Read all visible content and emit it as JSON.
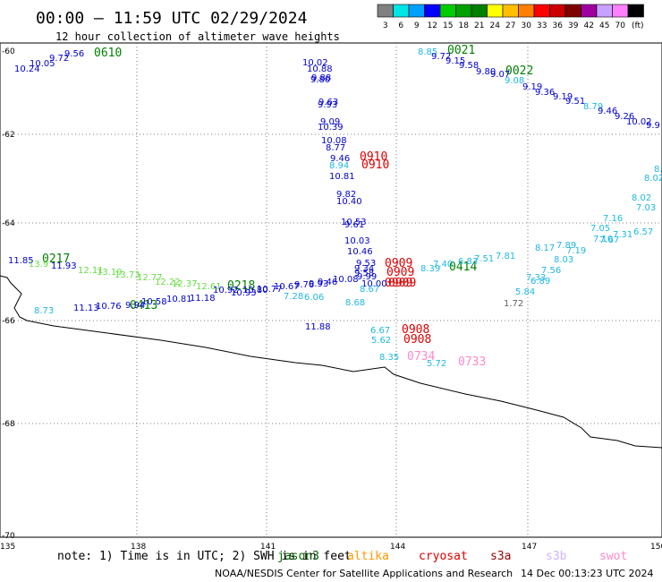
{
  "header": {
    "title": "00:00 — 11:59 UTC 02/29/2024",
    "subtitle": "12 hour collection of altimeter wave heights"
  },
  "legend": {
    "colors": [
      "#808080",
      "#00e5e5",
      "#00a0ff",
      "#0000ff",
      "#00cc00",
      "#00a000",
      "#008000",
      "#ffff00",
      "#ffbf00",
      "#ff8000",
      "#ff0000",
      "#cc0000",
      "#800000",
      "#a000a0",
      "#c8a0ff",
      "#ff80ff",
      "#000000"
    ],
    "labels": [
      "3",
      "6",
      "9",
      "12",
      "15",
      "18",
      "21",
      "24",
      "27",
      "30",
      "33",
      "36",
      "39",
      "42",
      "45",
      "70",
      "(ft)"
    ]
  },
  "axes": {
    "x_ticks": [
      "135",
      "138",
      "141",
      "144",
      "147",
      "150"
    ],
    "y_ticks": [
      "-60",
      "-62",
      "-64",
      "-66",
      "-68",
      "-70"
    ]
  },
  "map": {
    "colors": {
      "blue": "#0000cc",
      "cyan": "#20b8e0",
      "green": "#66dd44",
      "dkgreen": "#008000",
      "red": "#dd0000",
      "pink": "#ff88cc",
      "gray": "#606060"
    },
    "times": [
      {
        "text": "0610",
        "color": "dkgreen"
      },
      {
        "text": "0021",
        "color": "dkgreen"
      },
      {
        "text": "0022",
        "color": "dkgreen"
      },
      {
        "text": "0910",
        "color": "red"
      },
      {
        "text": "0910",
        "color": "red"
      },
      {
        "text": "0217",
        "color": "dkgreen"
      },
      {
        "text": "0218",
        "color": "dkgreen"
      },
      {
        "text": "0413",
        "color": "dkgreen"
      },
      {
        "text": "0414",
        "color": "dkgreen"
      },
      {
        "text": "0909",
        "color": "red"
      },
      {
        "text": "0909",
        "color": "red"
      },
      {
        "text": "0909",
        "color": "red"
      },
      {
        "text": "0909",
        "color": "red"
      },
      {
        "text": "0908",
        "color": "red"
      },
      {
        "text": "0908",
        "color": "red"
      },
      {
        "text": "0734",
        "color": "pink"
      },
      {
        "text": "0733",
        "color": "pink"
      }
    ],
    "values": [
      {
        "text": "10.24",
        "color": "blue"
      },
      {
        "text": "10.05",
        "color": "blue"
      },
      {
        "text": "9.72",
        "color": "blue"
      },
      {
        "text": "9.56",
        "color": "blue"
      },
      {
        "text": "10.02",
        "color": "blue"
      },
      {
        "text": "10.88",
        "color": "blue"
      },
      {
        "text": "9.88",
        "color": "blue"
      },
      {
        "text": "9.80",
        "color": "blue"
      },
      {
        "text": "9.63",
        "color": "blue"
      },
      {
        "text": "9.93",
        "color": "blue"
      },
      {
        "text": "9.09",
        "color": "blue"
      },
      {
        "text": "10.39",
        "color": "blue"
      },
      {
        "text": "10.08",
        "color": "blue"
      },
      {
        "text": "8.77",
        "color": "blue"
      },
      {
        "text": "9.46",
        "color": "blue"
      },
      {
        "text": "8.94",
        "color": "cyan"
      },
      {
        "text": "10.81",
        "color": "blue"
      },
      {
        "text": "9.82",
        "color": "blue"
      },
      {
        "text": "10.40",
        "color": "blue"
      },
      {
        "text": "10.53",
        "color": "blue"
      },
      {
        "text": "9.61",
        "color": "blue"
      },
      {
        "text": "10.03",
        "color": "blue"
      },
      {
        "text": "10.46",
        "color": "blue"
      },
      {
        "text": "9.53",
        "color": "blue"
      },
      {
        "text": "9.34",
        "color": "blue"
      },
      {
        "text": "9.58",
        "color": "blue"
      },
      {
        "text": "9.99",
        "color": "blue"
      },
      {
        "text": "10.00",
        "color": "blue"
      },
      {
        "text": "10.08",
        "color": "blue"
      },
      {
        "text": "8.67",
        "color": "cyan"
      },
      {
        "text": "11.88",
        "color": "blue"
      },
      {
        "text": "8.68",
        "color": "cyan"
      },
      {
        "text": "8.85",
        "color": "cyan"
      },
      {
        "text": "9.72",
        "color": "blue"
      },
      {
        "text": "9.15",
        "color": "blue"
      },
      {
        "text": "9.58",
        "color": "blue"
      },
      {
        "text": "9.80",
        "color": "blue"
      },
      {
        "text": "9.07",
        "color": "blue"
      },
      {
        "text": "9.08",
        "color": "cyan"
      },
      {
        "text": "9.19",
        "color": "blue"
      },
      {
        "text": "9.36",
        "color": "blue"
      },
      {
        "text": "9.19",
        "color": "blue"
      },
      {
        "text": "9.51",
        "color": "blue"
      },
      {
        "text": "8.79",
        "color": "cyan"
      },
      {
        "text": "9.46",
        "color": "blue"
      },
      {
        "text": "9.26",
        "color": "blue"
      },
      {
        "text": "10.02",
        "color": "blue"
      },
      {
        "text": "9.9",
        "color": "blue"
      },
      {
        "text": "8.",
        "color": "cyan"
      },
      {
        "text": "8.02",
        "color": "cyan"
      },
      {
        "text": "8.02",
        "color": "cyan"
      },
      {
        "text": "7.03",
        "color": "cyan"
      },
      {
        "text": "7.16",
        "color": "cyan"
      },
      {
        "text": "7.05",
        "color": "cyan"
      },
      {
        "text": "7.31",
        "color": "cyan"
      },
      {
        "text": "6.57",
        "color": "cyan"
      },
      {
        "text": "7.10",
        "color": "cyan"
      },
      {
        "text": "7.67",
        "color": "cyan"
      },
      {
        "text": "7.19",
        "color": "cyan"
      },
      {
        "text": "7.89",
        "color": "cyan"
      },
      {
        "text": "8.17",
        "color": "cyan"
      },
      {
        "text": "8.03",
        "color": "cyan"
      },
      {
        "text": "7.56",
        "color": "cyan"
      },
      {
        "text": "6.89",
        "color": "cyan"
      },
      {
        "text": "5.84",
        "color": "cyan"
      },
      {
        "text": "1.72",
        "color": "gray"
      },
      {
        "text": "7.33",
        "color": "cyan"
      },
      {
        "text": "7.81",
        "color": "cyan"
      },
      {
        "text": "7.51",
        "color": "cyan"
      },
      {
        "text": "6.83",
        "color": "cyan"
      },
      {
        "text": "7.40",
        "color": "cyan"
      },
      {
        "text": "8.39",
        "color": "cyan"
      },
      {
        "text": "11.85",
        "color": "blue"
      },
      {
        "text": "13.9",
        "color": "green"
      },
      {
        "text": "11.93",
        "color": "blue"
      },
      {
        "text": "12.11",
        "color": "green"
      },
      {
        "text": "13.19",
        "color": "green"
      },
      {
        "text": "13.73",
        "color": "green"
      },
      {
        "text": "12.77",
        "color": "green"
      },
      {
        "text": "12.22",
        "color": "green"
      },
      {
        "text": "12.37",
        "color": "green"
      },
      {
        "text": "12.61",
        "color": "green"
      },
      {
        "text": "10.92",
        "color": "blue"
      },
      {
        "text": "10.93",
        "color": "blue"
      },
      {
        "text": "10.80",
        "color": "blue"
      },
      {
        "text": "10.77",
        "color": "blue"
      },
      {
        "text": "10.67",
        "color": "blue"
      },
      {
        "text": "9.76",
        "color": "blue"
      },
      {
        "text": "9.93",
        "color": "blue"
      },
      {
        "text": "9.46",
        "color": "blue"
      },
      {
        "text": "7.28",
        "color": "cyan"
      },
      {
        "text": "6.06",
        "color": "cyan"
      },
      {
        "text": "8.73",
        "color": "cyan"
      },
      {
        "text": "11.13",
        "color": "blue"
      },
      {
        "text": "10.76",
        "color": "blue"
      },
      {
        "text": "9.94",
        "color": "blue"
      },
      {
        "text": "10.58",
        "color": "blue"
      },
      {
        "text": "10.81",
        "color": "blue"
      },
      {
        "text": "11.18",
        "color": "blue"
      },
      {
        "text": "6.67",
        "color": "cyan"
      },
      {
        "text": "5.62",
        "color": "cyan"
      },
      {
        "text": "8.35",
        "color": "cyan"
      },
      {
        "text": "5.72",
        "color": "cyan"
      }
    ]
  },
  "note": {
    "text": "note: 1) Time is in UTC; 2) SWH is in feet",
    "satellites": [
      {
        "name": "jason3",
        "color": "#006400"
      },
      {
        "name": "altika",
        "color": "#ff9900"
      },
      {
        "name": "cryosat",
        "color": "#dd0000"
      },
      {
        "name": "s3a",
        "color": "#990000"
      },
      {
        "name": "s3b",
        "color": "#c8b4ff"
      },
      {
        "name": "swot",
        "color": "#ff88cc"
      }
    ]
  },
  "footer": {
    "credit": "NOAA/NESDIS Center for Satellite Applications and Research",
    "timestamp": "14 Dec 00:13:23 UTC 2024"
  }
}
